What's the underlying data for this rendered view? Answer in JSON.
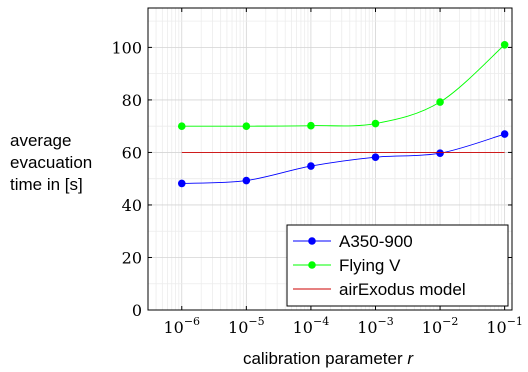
{
  "chart_data": {
    "type": "line",
    "x": [
      1e-06,
      1e-05,
      0.0001,
      0.001,
      0.01,
      0.1
    ],
    "x_ticks": [
      {
        "base": "10",
        "exp": "−6"
      },
      {
        "base": "10",
        "exp": "−5"
      },
      {
        "base": "10",
        "exp": "−4"
      },
      {
        "base": "10",
        "exp": "−3"
      },
      {
        "base": "10",
        "exp": "−2"
      },
      {
        "base": "10",
        "exp": "−1"
      }
    ],
    "xscale": "log",
    "xlim": [
      3e-07,
      0.13
    ],
    "ylim": [
      0,
      115
    ],
    "y_ticks": [
      "0",
      "20",
      "40",
      "60",
      "80",
      "100"
    ],
    "y_tick_values": [
      0,
      20,
      40,
      60,
      80,
      100
    ],
    "ylabel_lines": [
      "average",
      "evacuation",
      "time in [s]"
    ],
    "xlabel": "calibration parameter",
    "xlabel_var": "r",
    "grid": true,
    "legend_position": "bottom-right",
    "series": [
      {
        "name": "A350-900",
        "values": [
          48.2,
          49.3,
          54.8,
          58.2,
          59.7,
          67.0
        ],
        "color": "#0000ff",
        "marker": "circle"
      },
      {
        "name": "Flying V",
        "values": [
          70.0,
          70.0,
          70.2,
          71.0,
          79.2,
          101.0
        ],
        "color": "#00ff00",
        "marker": "circle"
      },
      {
        "name": "airExodus model",
        "values": [
          60.0,
          60.0,
          60.0,
          60.0,
          60.0,
          60.0
        ],
        "color": "#cc0000",
        "marker": "none"
      }
    ]
  }
}
